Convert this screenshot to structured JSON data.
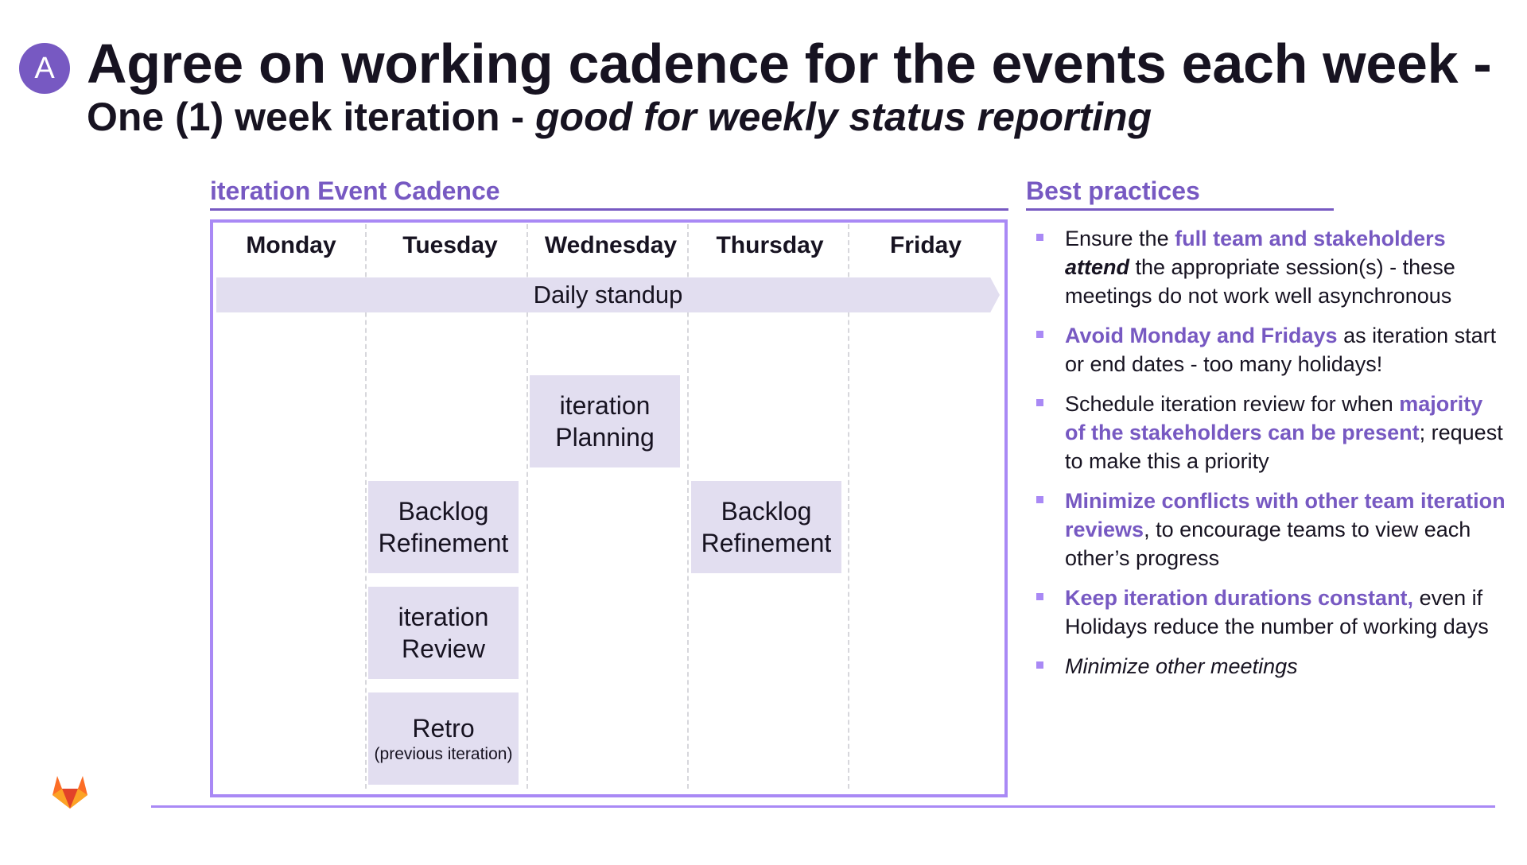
{
  "slide": {
    "badge": "A",
    "title": "Agree on working cadence for the events each week -",
    "subtitle_plain": "One (1) week iteration - ",
    "subtitle_italic": "good for weekly status reporting"
  },
  "cadence": {
    "heading": "iteration Event Cadence",
    "days": [
      "Monday",
      "Tuesday",
      "Wednesday",
      "Thursday",
      "Friday"
    ],
    "standup": "Daily standup",
    "events": [
      {
        "day": "Wednesday",
        "line1": "iteration",
        "line2": "Planning"
      },
      {
        "day": "Tuesday",
        "line1": "Backlog",
        "line2": "Refinement"
      },
      {
        "day": "Thursday",
        "line1": "Backlog",
        "line2": "Refinement"
      },
      {
        "day": "Tuesday",
        "line1": "iteration",
        "line2": "Review"
      },
      {
        "day": "Tuesday",
        "line1": "Retro",
        "sub": "(previous iteration)"
      }
    ]
  },
  "best_practices": {
    "heading": "Best practices",
    "items": [
      {
        "t1": "Ensure the ",
        "h1": "full team and stakeholders",
        "b1": "attend",
        "t2": " the appropriate session(s) - these meetings do not work well asynchronous"
      },
      {
        "h1": "Avoid Monday and Fridays",
        "t1": " as iteration start or end dates - too many holidays!"
      },
      {
        "t1": "Schedule iteration review for when ",
        "h1": "majority of the stakeholders can be present",
        "t2": "; request to make this a priority"
      },
      {
        "h1": "Minimize conflicts with other team iteration reviews",
        "t1": ", to encourage teams to view each other’s progress"
      },
      {
        "h1": "Keep iteration durations constant,",
        "t1": " even if Holidays reduce the number of working days"
      },
      {
        "i1": "Minimize other meetings"
      }
    ]
  },
  "colors": {
    "accent": "#7759c2",
    "accent_light": "#a989f5",
    "box_fill": "#e2def0",
    "logo": "#fc6d26"
  },
  "logo": {
    "icon": "gitlab-tanuki-icon"
  }
}
